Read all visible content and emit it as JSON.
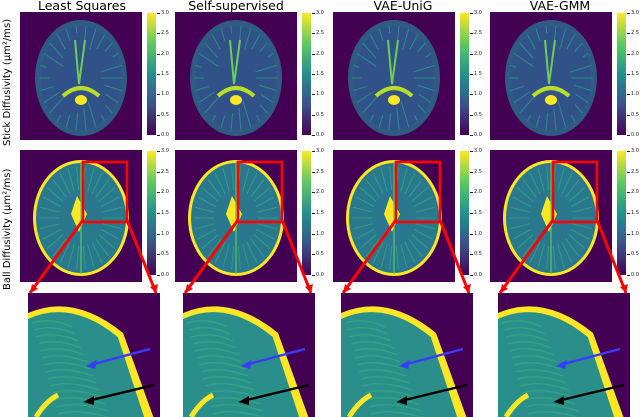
{
  "columns": [
    {
      "title": "Least Squares"
    },
    {
      "title": "Self-supervised"
    },
    {
      "title": "VAE-UniG"
    },
    {
      "title": "VAE-GMM"
    }
  ],
  "rows": {
    "stick_label": "Stick Diffusivity (μm²/ms)",
    "ball_label": "Ball Diffusivity (μm²/ms)"
  },
  "colorbar_ticks": [
    "3.0",
    "2.5",
    "2.0",
    "1.5",
    "1.0",
    "0.5",
    "0.0"
  ],
  "colors": {
    "background": "#ffffff",
    "brain_bg": "#440154",
    "highlight_box": "#ff0000",
    "blue_arrow": "#3b3bff",
    "black_arrow": "#000000"
  }
}
